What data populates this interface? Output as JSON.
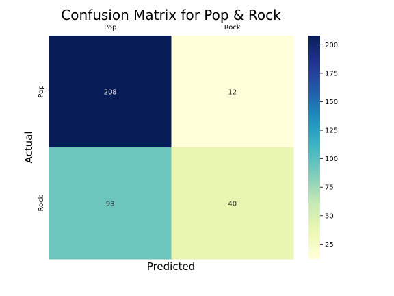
{
  "chart_data": {
    "type": "heatmap",
    "title": "Confusion Matrix for Pop & Rock",
    "xlabel": "Predicted",
    "ylabel": "Actual",
    "x_categories": [
      "Pop",
      "Rock"
    ],
    "y_categories": [
      "Pop",
      "Rock"
    ],
    "x_tick_position": "top",
    "values": [
      [
        208,
        12
      ],
      [
        93,
        40
      ]
    ],
    "colormap": "YlGnBu",
    "colorbar": {
      "range": [
        12,
        208
      ],
      "ticks": [
        "25",
        "50",
        "75",
        "100",
        "125",
        "150",
        "175",
        "200"
      ]
    },
    "grid": false
  }
}
